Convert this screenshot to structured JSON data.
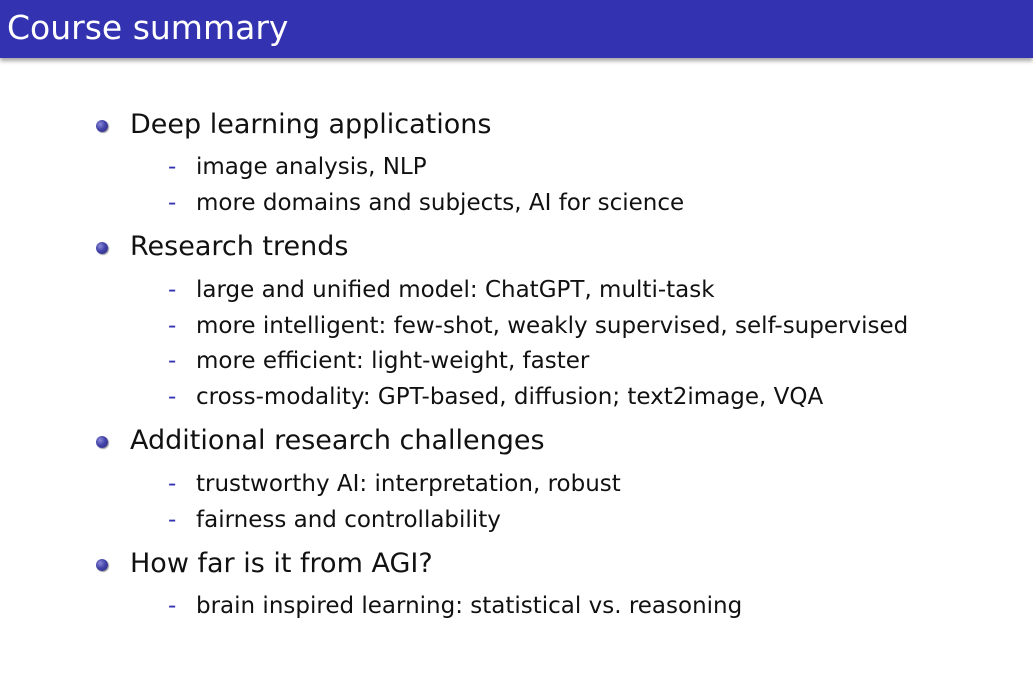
{
  "slide": {
    "title": "Course summary",
    "bullets": [
      {
        "text": "Deep learning applications",
        "subitems": [
          "image analysis, NLP",
          "more domains and subjects, AI for science"
        ]
      },
      {
        "text": "Research trends",
        "subitems": [
          "large and unified model: ChatGPT, multi-task",
          "more intelligent: few-shot, weakly supervised, self-supervised",
          "more efficient: light-weight, faster",
          "cross-modality: GPT-based, diffusion; text2image, VQA"
        ]
      },
      {
        "text": "Additional research challenges",
        "subitems": [
          "trustworthy AI: interpretation, robust",
          "fairness and controllability"
        ]
      },
      {
        "text": "How far is it from AGI?",
        "subitems": [
          "brain inspired learning: statistical vs. reasoning"
        ]
      }
    ],
    "sub_marker": "-",
    "colors": {
      "title_bar": "#3333b2",
      "title_text": "#ffffff",
      "bullet": "#4444aa",
      "sub_marker": "#3333b2",
      "body_text": "#111111"
    }
  }
}
